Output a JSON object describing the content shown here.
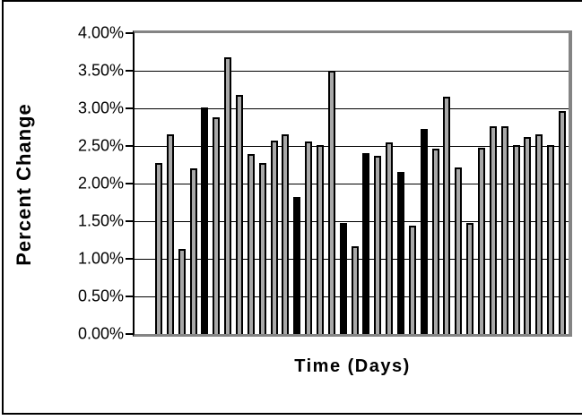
{
  "figure": {
    "y_axis_title": "Percent Change",
    "x_axis_title": "Time (Days)"
  },
  "chart_data": {
    "type": "bar",
    "title": "",
    "xlabel": "Time (Days)",
    "ylabel": "Percent Change",
    "x": [
      1,
      2,
      3,
      4,
      5,
      6,
      7,
      8,
      9,
      10,
      11,
      12,
      13,
      14,
      15,
      16,
      17,
      18,
      19,
      20,
      21,
      22,
      23,
      24,
      25,
      26,
      27,
      28,
      29,
      30,
      31,
      32,
      33,
      34,
      35,
      36
    ],
    "values": [
      2.27,
      2.65,
      1.13,
      2.2,
      3.01,
      2.88,
      3.68,
      3.18,
      2.39,
      2.27,
      2.57,
      2.65,
      1.82,
      2.56,
      2.51,
      3.5,
      1.48,
      1.17,
      2.4,
      2.37,
      2.55,
      2.15,
      1.44,
      2.73,
      2.46,
      3.16,
      2.22,
      1.48,
      2.48,
      2.76,
      2.76,
      2.51,
      2.62,
      2.66,
      2.51,
      2.96
    ],
    "dark_bars": [
      5,
      13,
      17,
      19,
      22,
      24
    ],
    "ylim": [
      0,
      4
    ],
    "y_tick_step": 0.5,
    "y_ticks": [
      "0.00%",
      "0.50%",
      "1.00%",
      "1.50%",
      "2.00%",
      "2.50%",
      "3.00%",
      "3.50%",
      "4.00%"
    ],
    "x_tick_labels": [],
    "grid": true,
    "legend": false,
    "colors": {
      "bar_fill": "#a8a8a8",
      "bar_border": "#000000",
      "plot_border": "#848484",
      "gridline": "#000000",
      "text": "#000000"
    }
  }
}
